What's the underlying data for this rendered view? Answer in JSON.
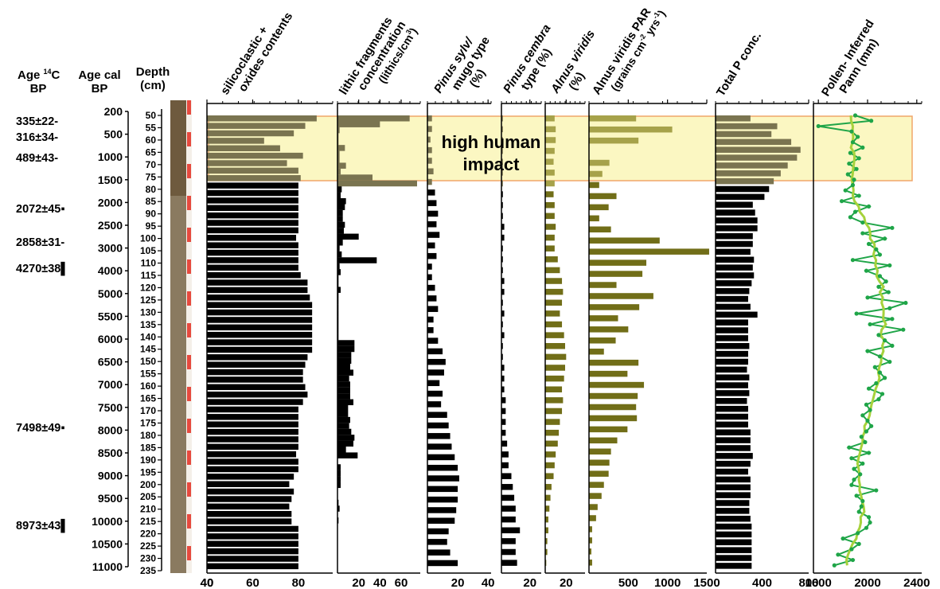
{
  "chart_data": {
    "type": "bar",
    "headers": {
      "age14c": [
        "Age ",
        "14",
        "C",
        "BP"
      ],
      "agecal": [
        "Age cal",
        "BP"
      ],
      "depth": [
        "Depth",
        "(cm)"
      ]
    },
    "panel_titles": [
      [
        "silicoclastic +",
        "oxides contents"
      ],
      [
        "lithic fragments",
        "concentration",
        "(lithics/cm",
        "3",
        ")"
      ],
      [
        "Pinus sylv/",
        "mugo type",
        "(%)"
      ],
      [
        "Pinus cembra",
        "type (%)"
      ],
      [
        "Alnus viridis",
        "(%)"
      ],
      [
        "Alnus viridis PAR",
        "(grains cm",
        "-2",
        " yrs",
        "-1",
        ")"
      ],
      [
        "Total P conc."
      ],
      [
        "Pollen- Inferred",
        "Pann (mm)"
      ]
    ],
    "annotation": [
      "high human",
      "impact"
    ],
    "age14c_labels": [
      "335±22",
      "316±34",
      "489±43",
      "2072±45",
      "2858±31",
      "4270±38",
      "7498±49",
      "8973±43"
    ],
    "agecal_ticks": [
      200,
      500,
      1000,
      1500,
      2000,
      2500,
      3000,
      4000,
      5000,
      5500,
      6000,
      6500,
      7000,
      7500,
      8000,
      8500,
      9000,
      9500,
      10000,
      10500,
      11000
    ],
    "depths": [
      50,
      55,
      60,
      65,
      70,
      75,
      80,
      85,
      90,
      95,
      100,
      105,
      110,
      115,
      120,
      125,
      130,
      135,
      140,
      145,
      150,
      155,
      160,
      165,
      170,
      175,
      180,
      185,
      190,
      195,
      200,
      205,
      210,
      215,
      220,
      225,
      230,
      235
    ],
    "x_ticks": {
      "silicoclastic": [
        "40",
        "60",
        "80"
      ],
      "lithic": [
        "20",
        "40",
        "60"
      ],
      "pinus_sylv": [
        "20",
        "40"
      ],
      "pinus_cembra": [
        "20"
      ],
      "alnus_pct": [
        "20"
      ],
      "alnus_par": [
        "500",
        "1000",
        "1500"
      ],
      "total_p": [
        "400",
        "800"
      ],
      "pann": [
        "1600",
        "2000",
        "2400"
      ]
    },
    "series": [
      {
        "key": "silicoclastic",
        "xlim": [
          40,
          95
        ],
        "values": [
          88,
          83,
          78,
          65,
          72,
          82,
          75,
          80,
          81,
          80,
          80,
          80,
          80,
          80,
          80,
          80,
          79,
          80,
          80,
          80,
          80,
          81,
          84,
          84,
          85,
          86,
          86,
          86,
          86,
          86,
          86,
          86,
          84,
          83,
          82,
          82,
          83,
          84,
          82,
          80,
          80,
          80,
          80,
          80,
          80,
          79,
          80,
          80,
          78,
          76,
          78,
          77,
          76,
          77,
          77,
          80,
          80,
          80,
          80,
          80,
          80
        ]
      },
      {
        "key": "lithic",
        "xlim": [
          0,
          78
        ],
        "values": [
          68,
          40,
          2,
          1,
          1,
          7,
          2,
          2,
          8,
          3,
          33,
          75,
          4,
          3,
          8,
          7,
          5,
          5,
          7,
          6,
          20,
          5,
          2,
          4,
          37,
          2,
          3,
          1,
          1,
          3,
          1,
          1,
          1,
          1,
          1,
          1,
          1,
          1,
          16,
          16,
          13,
          13,
          12,
          15,
          11,
          12,
          12,
          12,
          15,
          10,
          10,
          12,
          11,
          13,
          16,
          15,
          8,
          19,
          0,
          3,
          3,
          3,
          3,
          0,
          0,
          1,
          2,
          0,
          1,
          0,
          0,
          0,
          0,
          0,
          0,
          0,
          0
        ]
      },
      {
        "key": "pinus_sylv",
        "xlim": [
          0,
          42
        ],
        "values": [
          3,
          3,
          2,
          3,
          3,
          4,
          3,
          5,
          6,
          7,
          6,
          8,
          5,
          6,
          3,
          3,
          5,
          6,
          7,
          4,
          4,
          7,
          10,
          12,
          11,
          8,
          10,
          9,
          13,
          14,
          15,
          16,
          18,
          20,
          21,
          20,
          20,
          19,
          18,
          14,
          13,
          15,
          20
        ]
      },
      {
        "key": "pinus_cembra",
        "xlim": [
          0,
          28
        ],
        "values": [
          1,
          1,
          1,
          1,
          1,
          1,
          1,
          1,
          1,
          1,
          2,
          2,
          1,
          1,
          1,
          2,
          2,
          1,
          2,
          1,
          2,
          1,
          1,
          2,
          2,
          2,
          3,
          3,
          3,
          3,
          4,
          5,
          5,
          7,
          8,
          9,
          10,
          10,
          13,
          10,
          10,
          11
        ]
      },
      {
        "key": "alnus_pct",
        "xlim": [
          0,
          38
        ],
        "values": [
          9,
          10,
          10,
          9,
          8,
          9,
          9,
          8,
          9,
          9,
          10,
          9,
          9,
          12,
          14,
          16,
          17,
          16,
          14,
          16,
          18,
          19,
          20,
          19,
          18,
          16,
          17,
          16,
          14,
          13,
          12,
          10,
          9,
          8,
          6,
          5,
          4,
          3,
          3,
          2,
          2,
          1
        ]
      },
      {
        "key": "alnus_par",
        "xlim": [
          0,
          1500
        ],
        "values": [
          600,
          1060,
          630,
          0,
          260,
          170,
          130,
          350,
          250,
          130,
          280,
          900,
          1530,
          730,
          680,
          350,
          820,
          640,
          370,
          500,
          340,
          190,
          630,
          490,
          700,
          620,
          600,
          610,
          490,
          360,
          280,
          260,
          250,
          190,
          160,
          110,
          90,
          40,
          40,
          30,
          40
        ]
      },
      {
        "key": "total_p",
        "xlim": [
          0,
          800
        ],
        "values": [
          300,
          530,
          480,
          650,
          730,
          700,
          620,
          560,
          500,
          460,
          420,
          320,
          340,
          360,
          360,
          320,
          320,
          300,
          330,
          320,
          330,
          310,
          290,
          280,
          300,
          360,
          280,
          280,
          280,
          290,
          280,
          280,
          270,
          290,
          280,
          290,
          270,
          280,
          280,
          280,
          300,
          300,
          300,
          320,
          300,
          280,
          300,
          300,
          300,
          290,
          290,
          300,
          310,
          310,
          310,
          310,
          310,
          310
        ]
      },
      {
        "key": "pann",
        "xlim": [
          1560,
          2440
        ],
        "values": [
          1900,
          2030,
          1600,
          1870,
          1920,
          1880,
          1960,
          1860,
          1930,
          1850,
          1910,
          1840,
          1890,
          1880,
          1820,
          1930,
          1790,
          2010,
          1900,
          1860,
          1960,
          2200,
          1960,
          2140,
          2010,
          2070,
          2100,
          1880,
          2180,
          1990,
          2100,
          2150,
          2090,
          2170,
          2000,
          2310,
          2180,
          1910,
          2200,
          2020,
          2290,
          2090,
          2140,
          2200,
          2000,
          2100,
          2180,
          2060,
          2100,
          2140,
          2070,
          2010,
          2120,
          2090,
          1990,
          2020,
          1960,
          2000,
          2030,
          1990,
          1950,
          1980,
          1850,
          2010,
          1870,
          1960,
          1890,
          1940,
          1890,
          1870,
          2070,
          1910,
          1960,
          1950,
          1930,
          2010,
          2020,
          1990,
          1920,
          1800,
          1930,
          1870,
          1760,
          1880,
          1730
        ]
      }
    ]
  }
}
